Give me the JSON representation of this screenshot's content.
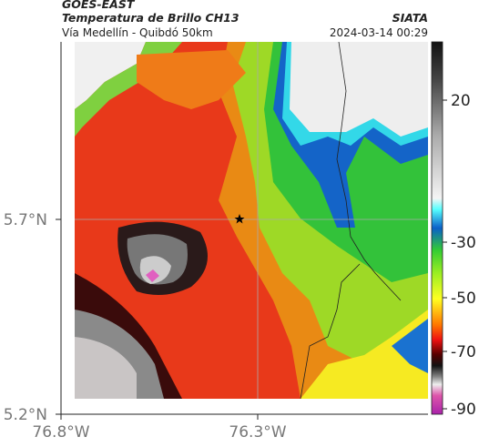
{
  "header": {
    "title": "GOES-EAST",
    "subtitle": "Temperatura de Brillo CH13",
    "route": "Vía Medellín - Quibdó 50km",
    "source": "SIATA",
    "datetime": "2024-03-14 00:29"
  },
  "map": {
    "lat_ticks": [
      {
        "value": 5.7,
        "label": "5.7°N"
      },
      {
        "value": 5.2,
        "label": "5.2°N"
      }
    ],
    "lon_ticks": [
      {
        "value": -76.8,
        "label": "76.8°W"
      },
      {
        "value": -76.3,
        "label": "76.3°W"
      }
    ],
    "colorbar_ticks": [
      20,
      -30,
      -50,
      -70,
      -90
    ]
  }
}
